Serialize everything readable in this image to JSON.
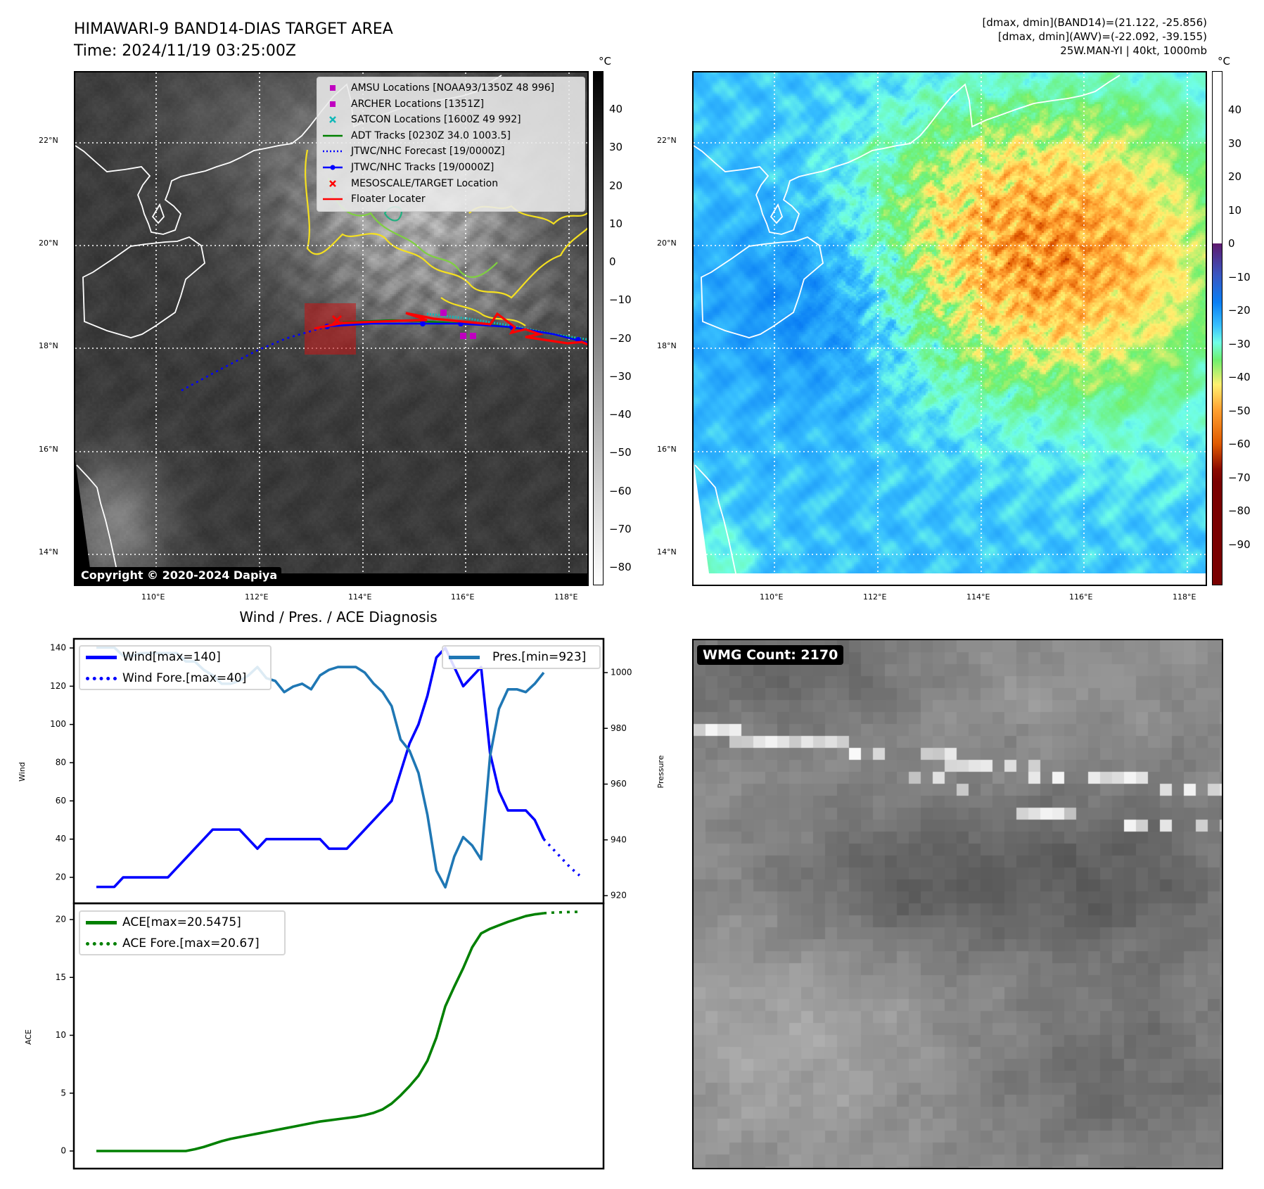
{
  "header": {
    "title": "HIMAWARI-9 BAND14-DIAS TARGET AREA",
    "time": "Time: 2024/11/19 03:25:00Z",
    "info_lines": [
      "[dmax, dmin](BAND14)=(21.122, -25.856)",
      "[dmax, dmin](AWV)=(-22.092, -39.155)",
      "25W.MAN-YI | 40kt, 1000mb"
    ]
  },
  "maps": {
    "lat_labels": [
      "22°N",
      "20°N",
      "18°N",
      "16°N",
      "14°N"
    ],
    "lon_labels": [
      "110°E",
      "112°E",
      "114°E",
      "116°E",
      "118°E"
    ],
    "copyright": "Copyright © 2020-2024 Dapiya",
    "legend": [
      {
        "label": "AMSU Locations [NOAA93/1350Z 48 996]",
        "color": "#c000c0",
        "marker": "square"
      },
      {
        "label": "ARCHER Locations [1351Z]",
        "color": "#c000c0",
        "marker": "square"
      },
      {
        "label": "SATCON Locations [1600Z 49 992]",
        "color": "#10b8b8",
        "marker": "x"
      },
      {
        "label": "ADT Tracks [0230Z 34.0 1003.5]",
        "color": "#008000",
        "marker": "line"
      },
      {
        "label": "JTWC/NHC Forecast [19/0000Z]",
        "color": "#0000ff",
        "marker": "dotted"
      },
      {
        "label": "JTWC/NHC Tracks [19/0000Z]",
        "color": "#0000ff",
        "marker": "line-dot"
      },
      {
        "label": "MESOSCALE/TARGET Location",
        "color": "#ff0000",
        "marker": "x"
      },
      {
        "label": "Floater Locater",
        "color": "#ff0000",
        "marker": "line"
      }
    ],
    "colorbar_left": {
      "unit": "°C",
      "ticks": [
        "40",
        "30",
        "20",
        "10",
        "0",
        "−10",
        "−20",
        "−30",
        "−40",
        "−50",
        "−60",
        "−70",
        "−80"
      ]
    },
    "colorbar_right": {
      "unit": "°C",
      "ticks": [
        "40",
        "30",
        "20",
        "10",
        "0",
        "−10",
        "−20",
        "−30",
        "−40",
        "−50",
        "−60",
        "−70",
        "−80",
        "−90"
      ]
    }
  },
  "wmg": {
    "label": "WMG Count: 2170"
  },
  "chart_data": {
    "type": "line",
    "title": "Wind / Pres. / ACE Diagnosis",
    "wind": {
      "ylabel": "Wind",
      "ylim": [
        8,
        146
      ],
      "ticks": [
        20,
        40,
        60,
        80,
        100,
        120,
        140
      ],
      "legend": [
        "Wind[max=140]",
        "Wind Fore.[max=40]"
      ],
      "color": "#0000ff",
      "values": [
        15,
        15,
        15,
        20,
        20,
        20,
        20,
        20,
        20,
        25,
        30,
        35,
        40,
        45,
        45,
        45,
        45,
        40,
        35,
        40,
        40,
        40,
        40,
        40,
        40,
        40,
        35,
        35,
        35,
        40,
        45,
        50,
        55,
        60,
        75,
        90,
        100,
        115,
        135,
        140,
        130,
        120,
        125,
        130,
        85,
        65,
        55,
        55,
        55,
        50,
        40
      ],
      "forecast": [
        40,
        35,
        30,
        25,
        21
      ]
    },
    "pressure": {
      "ylabel": "Pressure",
      "ylim": [
        918,
        1011
      ],
      "ticks": [
        920,
        940,
        960,
        980,
        1000
      ],
      "legend": [
        "Pres.[min=923]"
      ],
      "color": "#1f77b4",
      "values": [
        1009,
        1009,
        1009,
        1006,
        1006,
        1007,
        1007,
        1007,
        1007,
        1007,
        1004,
        1004,
        1001,
        999,
        996,
        996,
        997,
        999,
        1002,
        998,
        997,
        993,
        995,
        996,
        994,
        999,
        1001,
        1002,
        1002,
        1002,
        1000,
        996,
        993,
        988,
        976,
        972,
        964,
        949,
        929,
        923,
        934,
        941,
        938,
        933,
        970,
        987,
        994,
        994,
        993,
        996,
        1000
      ]
    },
    "ace": {
      "ylabel": "ACE",
      "ylim": [
        -1,
        21.5
      ],
      "ticks": [
        0,
        5,
        10,
        15,
        20
      ],
      "legend": [
        "ACE[max=20.5475]",
        "ACE Fore.[max=20.67]"
      ],
      "color": "#008000",
      "values": [
        0,
        0,
        0,
        0,
        0,
        0,
        0,
        0,
        0,
        0,
        0,
        0.15,
        0.35,
        0.6,
        0.85,
        1.05,
        1.2,
        1.35,
        1.5,
        1.65,
        1.8,
        1.95,
        2.1,
        2.25,
        2.4,
        2.55,
        2.65,
        2.75,
        2.85,
        2.95,
        3.1,
        3.3,
        3.6,
        4.1,
        4.8,
        5.6,
        6.5,
        7.8,
        9.8,
        12.5,
        14.2,
        15.8,
        17.6,
        18.8,
        19.2,
        19.5,
        19.8,
        20.05,
        20.3,
        20.45,
        20.5475
      ],
      "forecast": [
        20.5475,
        20.6,
        20.63,
        20.65,
        20.67
      ]
    }
  }
}
